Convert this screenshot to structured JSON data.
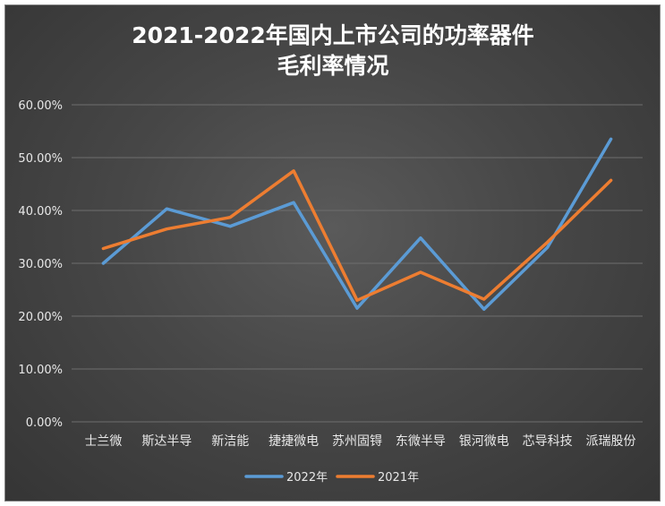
{
  "chart_data": {
    "type": "line",
    "title_lines": [
      "2021-2022年国内上市公司的功率器件",
      "毛利率情况"
    ],
    "categories": [
      "士兰微",
      "斯达半导",
      "新洁能",
      "捷捷微电",
      "苏州固锝",
      "东微半导",
      "银河微电",
      "芯导科技",
      "派瑞股份"
    ],
    "series": [
      {
        "name": "2022年",
        "color": "#5b9bd5",
        "values": [
          30.0,
          40.3,
          37.0,
          41.5,
          21.5,
          34.8,
          21.3,
          33.0,
          53.5
        ]
      },
      {
        "name": "2021年",
        "color": "#ed7d31",
        "values": [
          32.8,
          36.5,
          38.7,
          47.5,
          23.0,
          28.3,
          23.2,
          34.0,
          45.7
        ]
      }
    ],
    "y_ticks": [
      "0.00%",
      "10.00%",
      "20.00%",
      "30.00%",
      "40.00%",
      "50.00%",
      "60.00%"
    ],
    "ylim": [
      0,
      60
    ],
    "y_unit": "percent",
    "grid": true,
    "legend_position": "bottom",
    "background": "#474747",
    "gridline_color": "#6e6e6e",
    "text_color": "#e8e8e8"
  }
}
